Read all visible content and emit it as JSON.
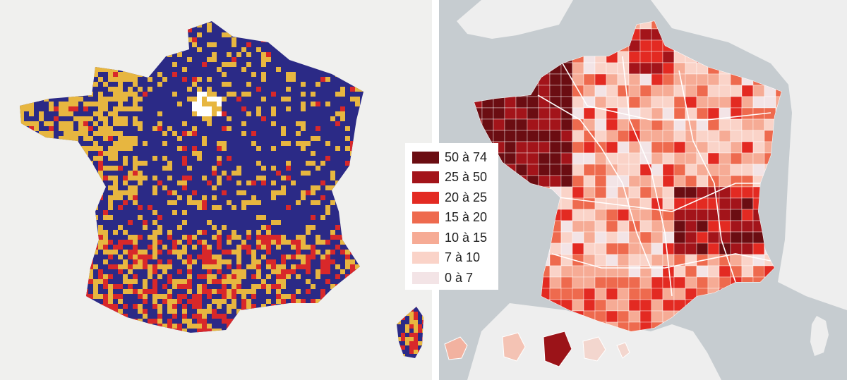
{
  "legend": {
    "items": [
      {
        "label": "50 à 74",
        "color": "#6b0d12"
      },
      {
        "label": "25 à 50",
        "color": "#a3141a"
      },
      {
        "label": "20 à 25",
        "color": "#e32a22"
      },
      {
        "label": "15 à 20",
        "color": "#ee6a4e"
      },
      {
        "label": "10 à 15",
        "color": "#f6ab95"
      },
      {
        "label": "7 à 10",
        "color": "#fad3c8"
      },
      {
        "label": "0 à 7",
        "color": "#f3e4e6"
      }
    ]
  },
  "left_map": {
    "background": "#f0f0ee",
    "land_color": "#2b2a86",
    "colors": {
      "blue": "#2b2a86",
      "yellow": "#e7b640",
      "red": "#d8282a",
      "white": "#ffffff"
    }
  },
  "right_map": {
    "sea_color": "#c6ccd0",
    "neighbour_color": "#eeeeee",
    "border_color": "#ffffff"
  }
}
